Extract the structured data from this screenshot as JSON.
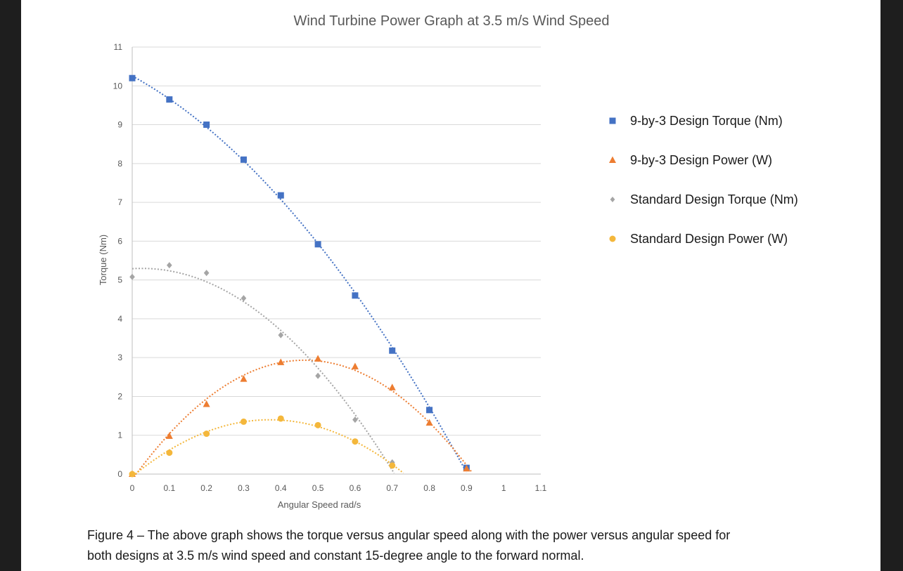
{
  "chart_data": {
    "type": "scatter",
    "title": "Wind Turbine Power Graph at 3.5 m/s Wind Speed",
    "xlabel": "Angular Speed rad/s",
    "ylabel": "Torque (Nm)",
    "xlim": [
      0,
      1.1
    ],
    "ylim": [
      0,
      11
    ],
    "x_ticks": [
      "0",
      "0.1",
      "0.2",
      "0.3",
      "0.4",
      "0.5",
      "0.6",
      "0.7",
      "0.8",
      "0.9",
      "1",
      "1.1"
    ],
    "y_ticks": [
      "0",
      "1",
      "2",
      "3",
      "4",
      "5",
      "6",
      "7",
      "8",
      "9",
      "10",
      "11"
    ],
    "grid": "horizontal",
    "legend_position": "right",
    "series": [
      {
        "name": "9-by-3 Design Torque (Nm)",
        "marker": "square",
        "color": "#4472c4",
        "x": [
          0,
          0.1,
          0.2,
          0.3,
          0.4,
          0.5,
          0.6,
          0.7,
          0.8,
          0.9
        ],
        "y": [
          10.2,
          9.65,
          9.0,
          8.1,
          7.18,
          5.92,
          4.6,
          3.18,
          1.65,
          0.16
        ]
      },
      {
        "name": "9-by-3 Design Power (W)",
        "marker": "triangle",
        "color": "#ed7d31",
        "x": [
          0,
          0.1,
          0.2,
          0.3,
          0.4,
          0.5,
          0.6,
          0.7,
          0.8,
          0.9
        ],
        "y": [
          0,
          0.98,
          1.8,
          2.45,
          2.88,
          2.97,
          2.77,
          2.23,
          1.32,
          0.14
        ]
      },
      {
        "name": "Standard Design Torque (Nm)",
        "marker": "diamond",
        "color": "#a5a5a5",
        "x": [
          0,
          0.1,
          0.2,
          0.3,
          0.4,
          0.5,
          0.6,
          0.7
        ],
        "y": [
          5.08,
          5.38,
          5.18,
          4.53,
          3.58,
          2.53,
          1.4,
          0.3
        ]
      },
      {
        "name": "Standard Design Power (W)",
        "marker": "circle",
        "color": "#f4b73b",
        "x": [
          0,
          0.1,
          0.2,
          0.3,
          0.4,
          0.5,
          0.6,
          0.7
        ],
        "y": [
          0,
          0.55,
          1.04,
          1.35,
          1.43,
          1.26,
          0.84,
          0.22
        ]
      }
    ]
  },
  "caption": {
    "line1": "Figure 4 – The above graph shows the torque versus angular speed along with the power versus angular speed for",
    "line2": "both designs at 3.5 m/s wind speed and constant 15-degree angle to the forward normal."
  }
}
